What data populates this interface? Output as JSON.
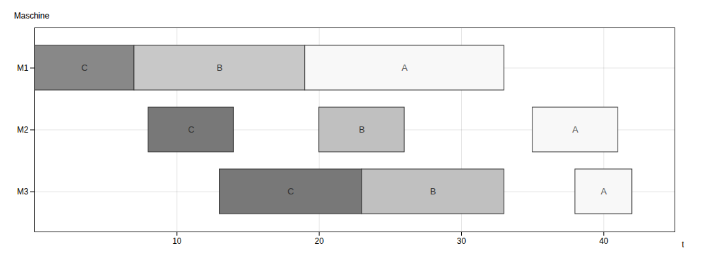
{
  "chart_data": {
    "type": "gantt",
    "xlabel": "t",
    "ylabel": "Maschine",
    "categories": [
      "M1",
      "M2",
      "M3"
    ],
    "tasks": [
      {
        "category": "M1",
        "label": "C",
        "start": 0,
        "duration": 7,
        "color": "#888888",
        "text_color": "#333333"
      },
      {
        "category": "M1",
        "label": "B",
        "start": 7,
        "duration": 12,
        "color": "#c8c8c8",
        "text_color": "#333333"
      },
      {
        "category": "M1",
        "label": "A",
        "start": 19,
        "duration": 14,
        "color": "#f8f8f8",
        "text_color": "#555555"
      },
      {
        "category": "M2",
        "label": "C",
        "start": 8,
        "duration": 6,
        "color": "#787878",
        "text_color": "#333333"
      },
      {
        "category": "M2",
        "label": "B",
        "start": 20,
        "duration": 6,
        "color": "#c0c0c0",
        "text_color": "#333333"
      },
      {
        "category": "M2",
        "label": "A",
        "start": 35,
        "duration": 6,
        "color": "#f8f8f8",
        "text_color": "#555555"
      },
      {
        "category": "M3",
        "label": "C",
        "start": 13,
        "duration": 10,
        "color": "#787878",
        "text_color": "#333333"
      },
      {
        "category": "M3",
        "label": "B",
        "start": 23,
        "duration": 10,
        "color": "#c0c0c0",
        "text_color": "#333333"
      },
      {
        "category": "M3",
        "label": "A",
        "start": 38,
        "duration": 4,
        "color": "#f8f8f8",
        "text_color": "#555555"
      }
    ],
    "xlim": [
      0,
      45
    ],
    "xticks": [
      10,
      20,
      30,
      40
    ],
    "grid": true
  }
}
